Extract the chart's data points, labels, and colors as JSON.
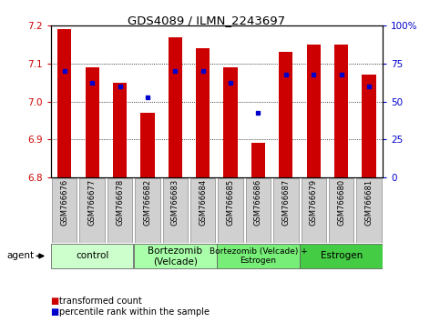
{
  "title": "GDS4089 / ILMN_2243697",
  "samples": [
    "GSM766676",
    "GSM766677",
    "GSM766678",
    "GSM766682",
    "GSM766683",
    "GSM766684",
    "GSM766685",
    "GSM766686",
    "GSM766687",
    "GSM766679",
    "GSM766680",
    "GSM766681"
  ],
  "bar_values": [
    7.19,
    7.09,
    7.05,
    6.97,
    7.17,
    7.14,
    7.09,
    6.89,
    7.13,
    7.15,
    7.15,
    7.07
  ],
  "bar_base": 6.8,
  "blue_dot_values": [
    7.08,
    7.05,
    7.04,
    7.01,
    7.08,
    7.08,
    7.05,
    6.97,
    7.07,
    7.07,
    7.07,
    7.04
  ],
  "bar_color": "#cc0000",
  "dot_color": "#0000cc",
  "ylim_left": [
    6.8,
    7.2
  ],
  "ylim_right": [
    0,
    100
  ],
  "yticks_left": [
    6.8,
    6.9,
    7.0,
    7.1,
    7.2
  ],
  "yticks_right": [
    0,
    25,
    50,
    75,
    100
  ],
  "ytick_labels_right": [
    "0",
    "25",
    "50",
    "75",
    "100%"
  ],
  "groups": [
    {
      "label": "control",
      "start": 0,
      "end": 3,
      "color": "#ccffcc"
    },
    {
      "label": "Bortezomib\n(Velcade)",
      "start": 3,
      "end": 6,
      "color": "#aaffaa"
    },
    {
      "label": "Bortezomib (Velcade) +\nEstrogen",
      "start": 6,
      "end": 9,
      "color": "#77ee77"
    },
    {
      "label": "Estrogen",
      "start": 9,
      "end": 12,
      "color": "#44cc44"
    }
  ],
  "agent_label": "agent",
  "legend_items": [
    {
      "label": "transformed count",
      "color": "#cc0000"
    },
    {
      "label": "percentile rank within the sample",
      "color": "#0000cc"
    }
  ],
  "left_axis_color": "#cc0000",
  "right_axis_color": "#0000cc",
  "bar_width": 0.5,
  "label_bg_color": "#d0d0d0",
  "label_edge_color": "#888888",
  "grid_lines": [
    6.9,
    7.0,
    7.1
  ]
}
